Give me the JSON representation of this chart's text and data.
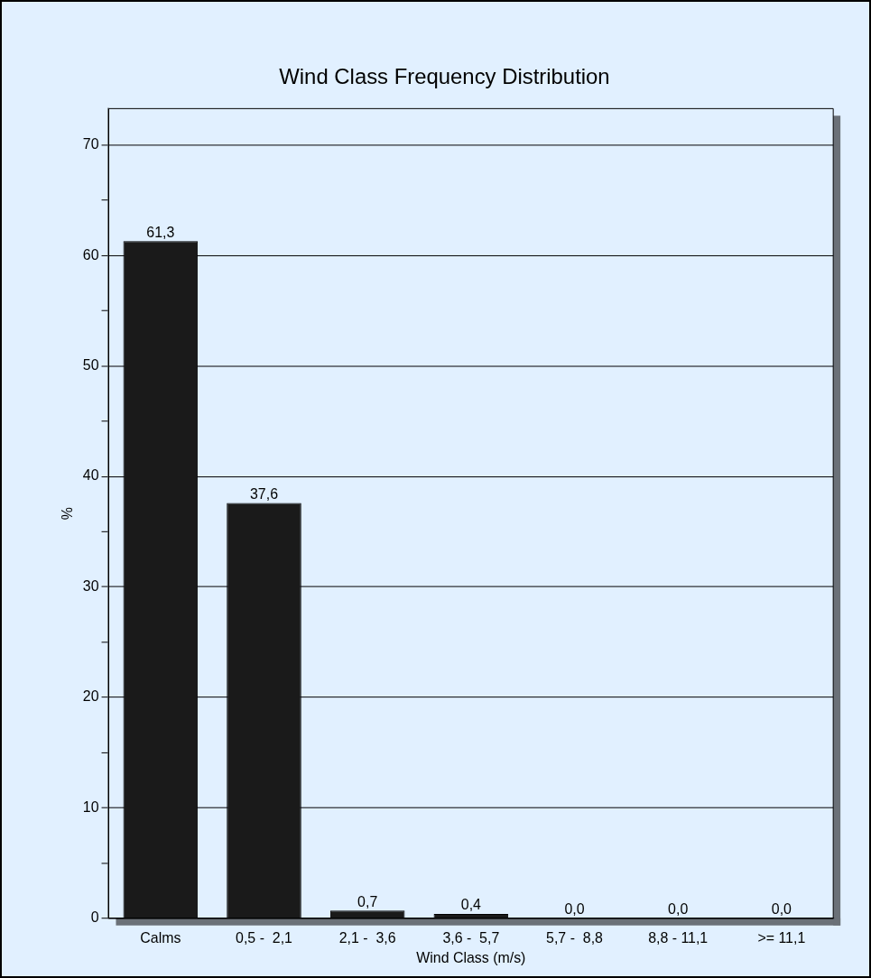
{
  "chart_data": {
    "type": "bar",
    "title": "Wind Class Frequency Distribution",
    "xlabel": "Wind Class (m/s)",
    "ylabel": "%",
    "categories": [
      "Calms",
      "0,5 -  2,1",
      "2,1 -  3,6",
      "3,6 -  5,7",
      "5,7 -  8,8",
      "8,8 - 11,1",
      ">= 11,1"
    ],
    "values": [
      61.3,
      37.6,
      0.7,
      0.4,
      0,
      0,
      0
    ],
    "value_labels": [
      "61,3",
      "37,6",
      "0,7",
      "0,4",
      "0,0",
      "0,0",
      "0,0"
    ],
    "color": "#1a1a1a",
    "ylim": [
      0,
      73.3
    ],
    "yticks": [
      0,
      {
        "value": 5,
        "label": null
      },
      10,
      {
        "value": 15,
        "label": null
      },
      20,
      {
        "value": 25,
        "label": null
      },
      30,
      {
        "value": 35,
        "label": null
      },
      40,
      {
        "value": 45,
        "label": null
      },
      50,
      {
        "value": 55,
        "label": null
      },
      60,
      {
        "value": 65,
        "label": null
      },
      70
    ],
    "grid": "y",
    "legend": false
  }
}
